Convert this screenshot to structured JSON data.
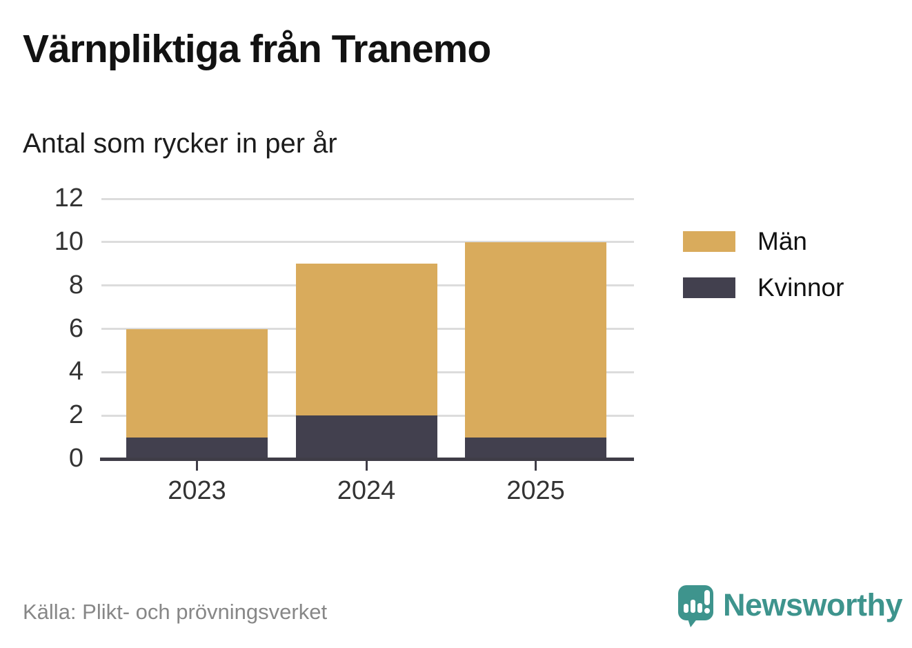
{
  "header": {
    "title": "Värnpliktiga från Tranemo",
    "subtitle": "Antal som rycker in per år"
  },
  "chart_data": {
    "type": "bar",
    "stacked": true,
    "categories": [
      "2023",
      "2024",
      "2025"
    ],
    "series": [
      {
        "name": "Kvinnor",
        "color": "#42404e",
        "values": [
          1,
          2,
          1
        ]
      },
      {
        "name": "Män",
        "color": "#d9ab5c",
        "values": [
          5,
          7,
          9
        ]
      }
    ],
    "totals": [
      6,
      9,
      10
    ],
    "yticks": [
      0,
      2,
      4,
      6,
      8,
      10,
      12
    ],
    "ylim": [
      0,
      12
    ],
    "grid": "horizontal",
    "legend_position": "right"
  },
  "legend": {
    "items": [
      {
        "label": "Män",
        "color": "#d9ab5c"
      },
      {
        "label": "Kvinnor",
        "color": "#42404e"
      }
    ]
  },
  "footer": {
    "source": "Källa: Plikt- och prövningsverket",
    "brand": "Newsworthy"
  },
  "colors": {
    "men": "#d9ab5c",
    "women": "#42404e",
    "axis": "#3f3d47",
    "grid": "#dcdcdc",
    "brand_teal": "#3e948d"
  }
}
